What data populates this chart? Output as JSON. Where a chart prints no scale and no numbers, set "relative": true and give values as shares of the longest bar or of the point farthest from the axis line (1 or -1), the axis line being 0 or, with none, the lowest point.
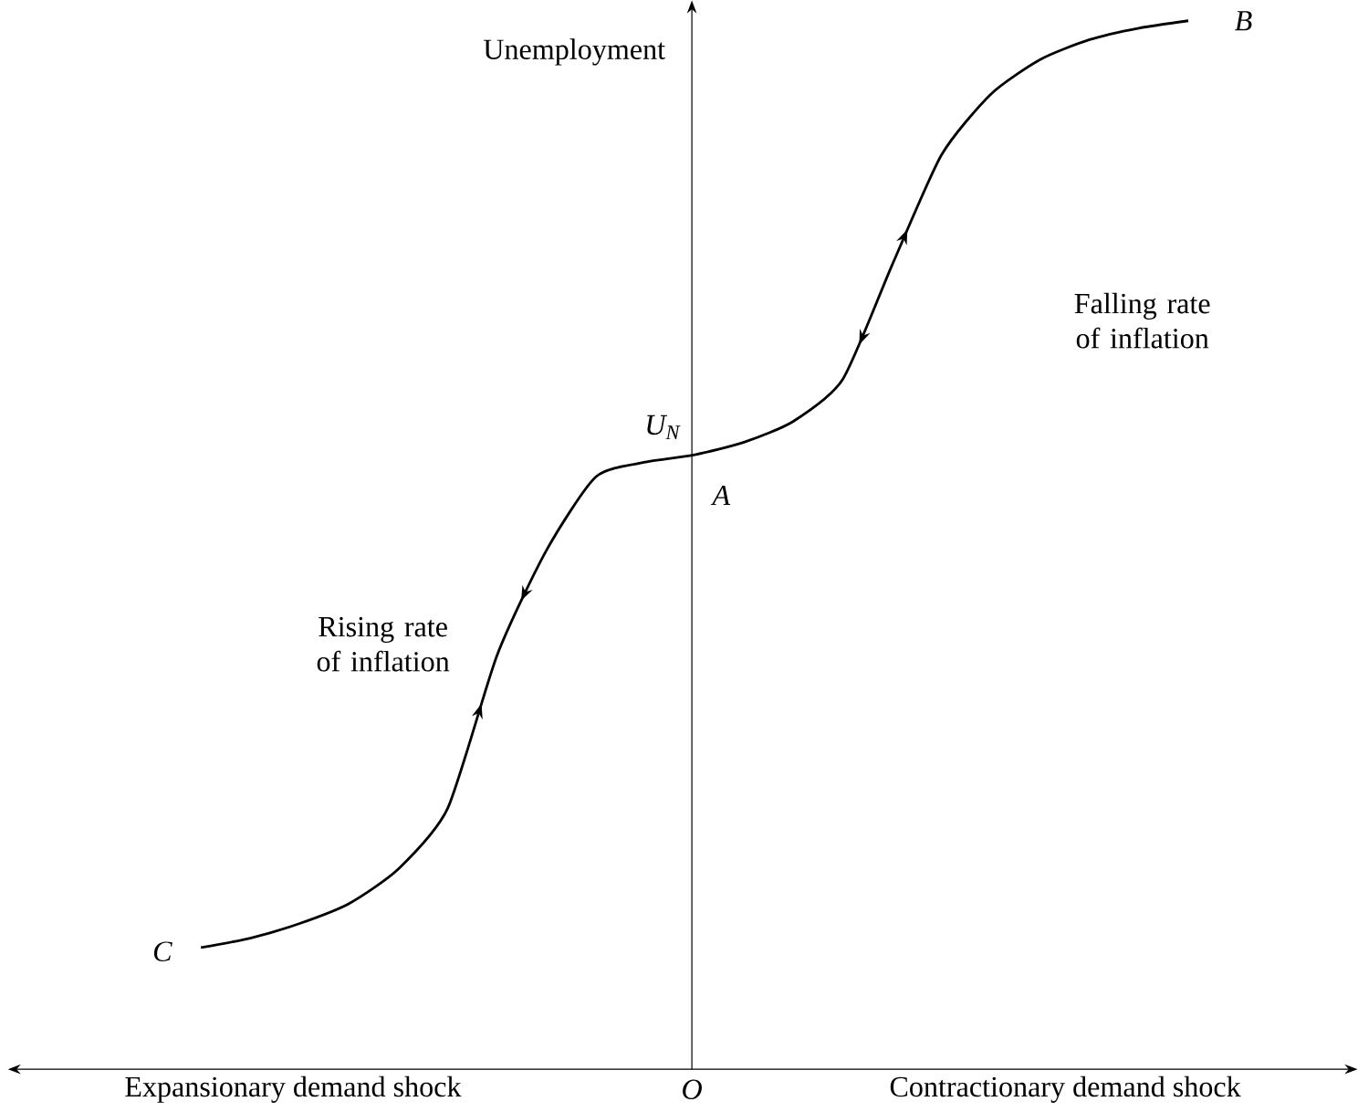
{
  "chart_data": {
    "type": "line",
    "relative": true,
    "ylabel": "Unemployment",
    "color": "#000000",
    "categories": [
      null,
      null,
      null,
      null,
      null,
      null,
      null,
      null,
      null,
      null,
      null,
      null,
      null,
      null,
      null,
      null,
      null,
      null,
      null,
      null,
      null
    ],
    "values": [
      0.116,
      0.125,
      0.139,
      0.158,
      0.191,
      0.249,
      0.395,
      0.495,
      0.565,
      0.579,
      0.586,
      0.598,
      0.618,
      0.658,
      0.767,
      0.872,
      0.93,
      0.963,
      0.982,
      0.993,
      1.0
    ],
    "annotations": [
      "B",
      "C",
      "A",
      "U$_{N}$",
      "Rising rate of inflation",
      "Falling rate of inflation",
      "O",
      "Expansionary demand shock",
      "Contractionary demand shock"
    ]
  }
}
